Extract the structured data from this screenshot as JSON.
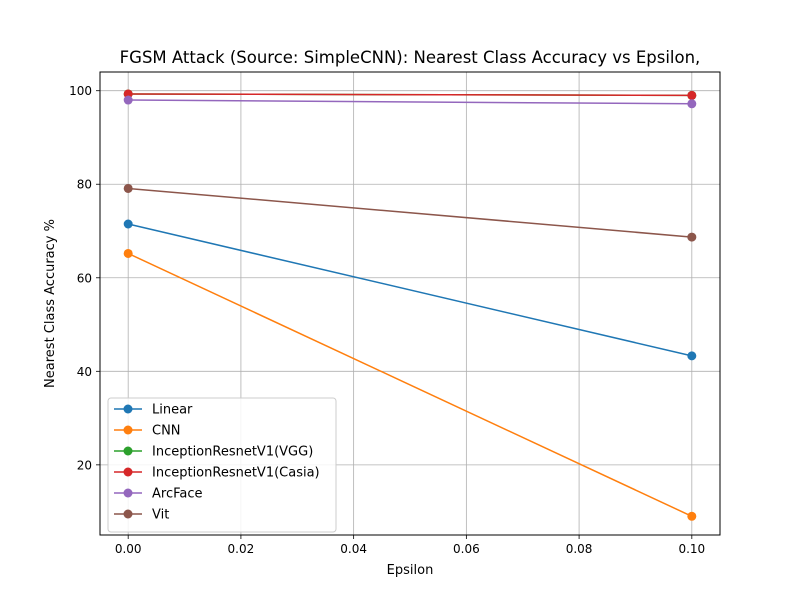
{
  "chart_data": {
    "type": "line",
    "title": "FGSM Attack (Source: SimpleCNN): Nearest Class Accuracy vs Epsilon,",
    "xlabel": "Epsilon",
    "ylabel": "Nearest Class Accuracy %",
    "xlim": [
      -0.005,
      0.105
    ],
    "ylim": [
      5,
      104
    ],
    "xticks": [
      0.0,
      0.02,
      0.04,
      0.06,
      0.08,
      0.1
    ],
    "xtick_labels": [
      "0.00",
      "0.02",
      "0.04",
      "0.06",
      "0.08",
      "0.10"
    ],
    "yticks": [
      20,
      40,
      60,
      80,
      100
    ],
    "ytick_labels": [
      "20",
      "40",
      "60",
      "80",
      "100"
    ],
    "grid": true,
    "legend_position": "lower-left",
    "x": [
      0.0,
      0.1
    ],
    "series": [
      {
        "name": "Linear",
        "color": "#1f77b4",
        "values": [
          71.5,
          43.3
        ]
      },
      {
        "name": "CNN",
        "color": "#ff7f0e",
        "values": [
          65.2,
          9.0
        ]
      },
      {
        "name": "InceptionResnetV1(VGG)",
        "color": "#2ca02c",
        "values": [
          99.3,
          99.0
        ]
      },
      {
        "name": "InceptionResnetV1(Casia)",
        "color": "#d62728",
        "values": [
          99.3,
          99.0
        ]
      },
      {
        "name": "ArcFace",
        "color": "#9467bd",
        "values": [
          98.0,
          97.2
        ]
      },
      {
        "name": "Vit",
        "color": "#8c564b",
        "values": [
          79.1,
          68.7
        ]
      }
    ]
  }
}
